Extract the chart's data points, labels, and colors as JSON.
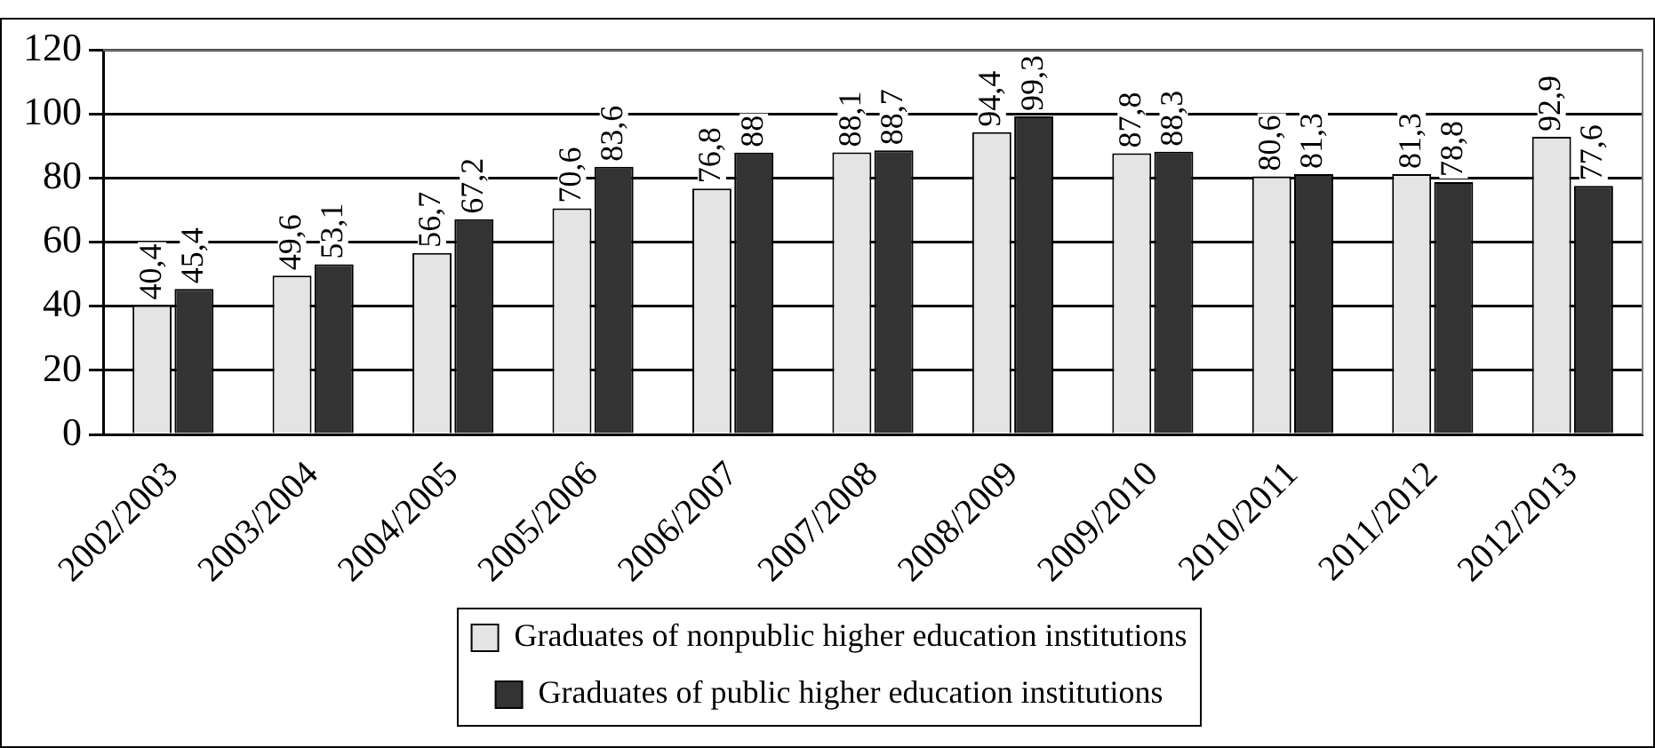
{
  "chart_data": {
    "type": "bar",
    "categories": [
      "2002/2003",
      "2003/2004",
      "2004/2005",
      "2005/2006",
      "2006/2007",
      "2007/2008",
      "2008/2009",
      "2009/2010",
      "2010/2011",
      "2011/2012",
      "2012/2013"
    ],
    "series": [
      {
        "name": "Graduates of nonpublic higher education institutions",
        "color": "#e4e4e4",
        "values": [
          40.4,
          49.6,
          56.7,
          70.6,
          76.8,
          88.1,
          94.4,
          87.8,
          80.6,
          81.3,
          92.9
        ],
        "value_labels": [
          "40,4",
          "49,6",
          "56,7",
          "70,6",
          "76,8",
          "88,1",
          "94,4",
          "87,8",
          "80,6",
          "81,3",
          "92,9"
        ]
      },
      {
        "name": "Graduates of public higher education institutions",
        "color": "#333333",
        "values": [
          45.4,
          53.1,
          67.2,
          83.6,
          88,
          88.7,
          99.3,
          88.3,
          81.3,
          78.8,
          77.6
        ],
        "value_labels": [
          "45,4",
          "53,1",
          "67,2",
          "83,6",
          "88",
          "88,7",
          "99,3",
          "88,3",
          "81,3",
          "78,8",
          "77,6"
        ]
      }
    ],
    "ylim": [
      0,
      120
    ],
    "yticks": [
      0,
      20,
      40,
      60,
      80,
      100,
      120
    ],
    "grid": "y",
    "legend": "bottom"
  }
}
